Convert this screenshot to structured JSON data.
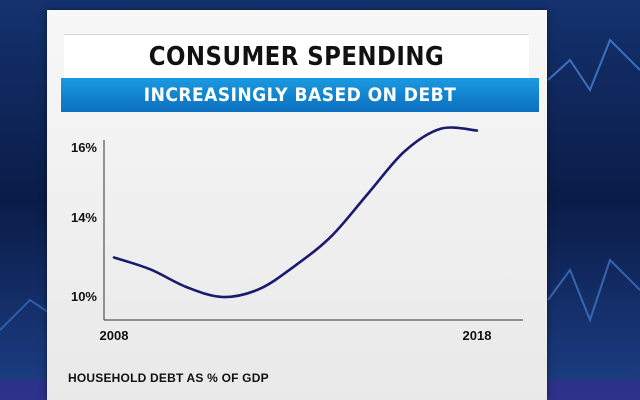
{
  "chart_data": {
    "type": "line",
    "title": "CONSUMER SPENDING",
    "subtitle": "INCREASINGLY BASED ON DEBT",
    "x_ticks": [
      "2008",
      "2018"
    ],
    "y_ticks": [
      "10%",
      "14%",
      "16%"
    ],
    "source_label": "HOUSEHOLD DEBT AS % OF GDP",
    "series": [
      {
        "color": "#1a1a6e",
        "points": [
          {
            "x": 2008.0,
            "y": 12.0
          },
          {
            "x": 2009.0,
            "y": 11.4
          },
          {
            "x": 2010.0,
            "y": 10.5
          },
          {
            "x": 2011.0,
            "y": 10.0
          },
          {
            "x": 2012.0,
            "y": 10.4
          },
          {
            "x": 2013.0,
            "y": 11.6
          },
          {
            "x": 2014.0,
            "y": 13.1
          },
          {
            "x": 2015.0,
            "y": 14.7
          },
          {
            "x": 2016.0,
            "y": 15.9
          },
          {
            "x": 2017.0,
            "y": 16.55
          },
          {
            "x": 2018.0,
            "y": 16.5
          }
        ]
      }
    ]
  },
  "colors": {
    "accent": "#1589d6",
    "line": "#1a1a6e",
    "background": "#0b1d4a"
  }
}
